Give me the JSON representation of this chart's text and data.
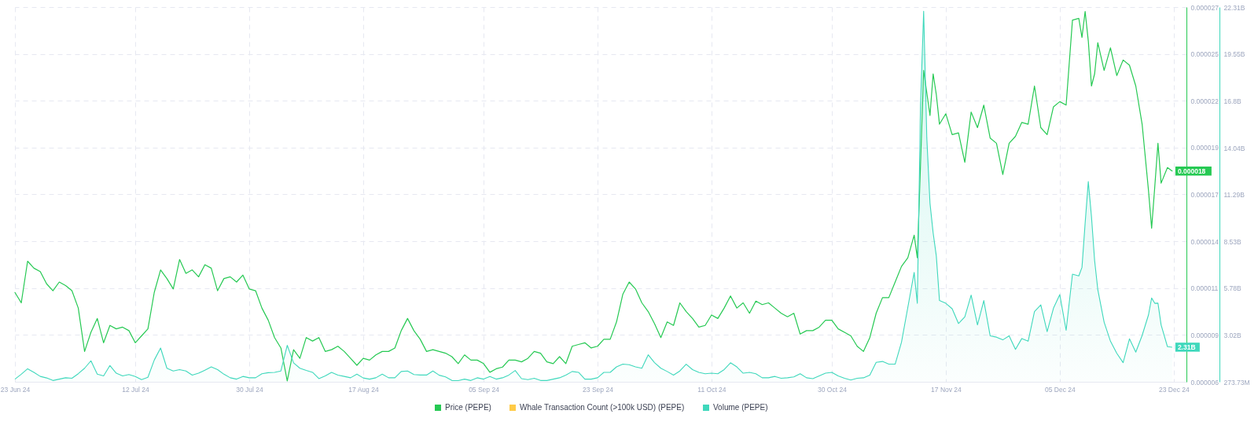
{
  "chart_data": {
    "type": "line",
    "x": [
      "2024-06-23",
      "2024-06-24",
      "2024-06-25",
      "2024-06-26",
      "2024-06-27",
      "2024-06-28",
      "2024-06-29",
      "2024-06-30",
      "2024-07-01",
      "2024-07-02",
      "2024-07-03",
      "2024-07-04",
      "2024-07-05",
      "2024-07-06",
      "2024-07-07",
      "2024-07-08",
      "2024-07-09",
      "2024-07-10",
      "2024-07-11",
      "2024-07-12",
      "2024-07-13",
      "2024-07-14",
      "2024-07-15",
      "2024-07-16",
      "2024-07-17",
      "2024-07-18",
      "2024-07-19",
      "2024-07-20",
      "2024-07-21",
      "2024-07-22",
      "2024-07-23",
      "2024-07-24",
      "2024-07-25",
      "2024-07-26",
      "2024-07-27",
      "2024-07-28",
      "2024-07-29",
      "2024-07-30",
      "2024-07-31",
      "2024-08-01",
      "2024-08-02",
      "2024-08-03",
      "2024-08-04",
      "2024-08-05",
      "2024-08-06",
      "2024-08-07",
      "2024-08-08",
      "2024-08-09",
      "2024-08-10",
      "2024-08-11",
      "2024-08-12",
      "2024-08-13",
      "2024-08-14",
      "2024-08-15",
      "2024-08-16",
      "2024-08-17",
      "2024-08-18",
      "2024-08-19",
      "2024-08-20",
      "2024-08-21",
      "2024-08-22",
      "2024-08-23",
      "2024-08-24",
      "2024-08-25",
      "2024-08-26",
      "2024-08-27",
      "2024-08-28",
      "2024-08-29",
      "2024-08-30",
      "2024-08-31",
      "2024-09-01",
      "2024-09-02",
      "2024-09-03",
      "2024-09-04",
      "2024-09-05",
      "2024-09-06",
      "2024-09-07",
      "2024-09-08",
      "2024-09-09",
      "2024-09-10",
      "2024-09-11",
      "2024-09-12",
      "2024-09-13",
      "2024-09-14",
      "2024-09-15",
      "2024-09-16",
      "2024-09-17",
      "2024-09-18",
      "2024-09-19",
      "2024-09-20",
      "2024-09-21",
      "2024-09-22",
      "2024-09-23",
      "2024-09-24",
      "2024-09-25",
      "2024-09-26",
      "2024-09-27",
      "2024-09-28",
      "2024-09-29",
      "2024-09-30",
      "2024-10-01",
      "2024-10-02",
      "2024-10-03",
      "2024-10-04",
      "2024-10-05",
      "2024-10-06",
      "2024-10-07",
      "2024-10-08",
      "2024-10-09",
      "2024-10-10",
      "2024-10-11",
      "2024-10-12",
      "2024-10-13",
      "2024-10-14",
      "2024-10-15",
      "2024-10-16",
      "2024-10-17",
      "2024-10-18",
      "2024-10-19",
      "2024-10-20",
      "2024-10-21",
      "2024-10-22",
      "2024-10-23",
      "2024-10-24",
      "2024-10-25",
      "2024-10-26",
      "2024-10-27",
      "2024-10-28",
      "2024-10-29",
      "2024-10-30",
      "2024-10-31",
      "2024-11-01",
      "2024-11-02",
      "2024-11-03",
      "2024-11-04",
      "2024-11-05",
      "2024-11-06",
      "2024-11-07",
      "2024-11-08",
      "2024-11-09",
      "2024-11-10",
      "2024-11-11",
      "2024-11-12",
      "2024-11-12T12:00",
      "2024-11-13",
      "2024-11-13T12:00",
      "2024-11-14",
      "2024-11-14T12:00",
      "2024-11-15",
      "2024-11-15T12:00",
      "2024-11-16",
      "2024-11-17",
      "2024-11-18",
      "2024-11-19",
      "2024-11-20",
      "2024-11-21",
      "2024-11-22",
      "2024-11-23",
      "2024-11-24",
      "2024-11-25",
      "2024-11-26",
      "2024-11-27",
      "2024-11-28",
      "2024-11-29",
      "2024-11-30",
      "2024-12-01",
      "2024-12-02",
      "2024-12-03",
      "2024-12-04",
      "2024-12-05",
      "2024-12-06",
      "2024-12-07",
      "2024-12-08",
      "2024-12-08T12:00",
      "2024-12-09",
      "2024-12-09T12:00",
      "2024-12-10",
      "2024-12-10T12:00",
      "2024-12-11",
      "2024-12-12",
      "2024-12-13",
      "2024-12-14",
      "2024-12-15",
      "2024-12-16",
      "2024-12-17",
      "2024-12-18",
      "2024-12-19",
      "2024-12-19T12:00",
      "2024-12-20",
      "2024-12-20T12:00",
      "2024-12-21",
      "2024-12-22",
      "2024-12-22T18:00"
    ],
    "series": [
      {
        "name": "Price (PEPE)",
        "color": "#26c953",
        "axis": "y",
        "values": [
          1.1e-05,
          1.04e-05,
          1.28e-05,
          1.24e-05,
          1.22e-05,
          1.15e-05,
          1.11e-05,
          1.16e-05,
          1.14e-05,
          1.11e-05,
          1.01e-05,
          7.6e-06,
          8.7e-06,
          9.5e-06,
          8.1e-06,
          9.1e-06,
          8.9e-06,
          9e-06,
          8.8e-06,
          8.1e-06,
          8.5e-06,
          8.9e-06,
          1.1e-05,
          1.23e-05,
          1.18e-05,
          1.12e-05,
          1.29e-05,
          1.21e-05,
          1.23e-05,
          1.19e-05,
          1.26e-05,
          1.24e-05,
          1.11e-05,
          1.18e-05,
          1.19e-05,
          1.16e-05,
          1.2e-05,
          1.12e-05,
          1.11e-05,
          1.01e-05,
          9.4e-06,
          8.4e-06,
          7.8e-06,
          5.9e-06,
          7.7e-06,
          7.2e-06,
          8.4e-06,
          8.2e-06,
          8.4e-06,
          7.6e-06,
          7.7e-06,
          7.9e-06,
          7.6e-06,
          7.2e-06,
          6.8e-06,
          7.2e-06,
          7.1e-06,
          7.4e-06,
          7.6e-06,
          7.6e-06,
          7.8e-06,
          8.8e-06,
          9.5e-06,
          8.8e-06,
          8.3e-06,
          7.6e-06,
          7.7e-06,
          7.6e-06,
          7.5e-06,
          7.3e-06,
          6.9e-06,
          7.4e-06,
          7.1e-06,
          7.1e-06,
          6.9e-06,
          6.4e-06,
          6.6e-06,
          6.7e-06,
          7.1e-06,
          7.1e-06,
          7e-06,
          7.2e-06,
          7.6e-06,
          7.5e-06,
          7e-06,
          6.9e-06,
          7.3e-06,
          6.9e-06,
          7.9e-06,
          8e-06,
          8.1e-06,
          7.8e-06,
          7.9e-06,
          8.3e-06,
          8.3e-06,
          9.3e-06,
          1.09e-05,
          1.16e-05,
          1.12e-05,
          1.04e-05,
          9.9e-06,
          9.2e-06,
          8.4e-06,
          9.3e-06,
          9.1e-06,
          1.04e-05,
          9.9e-06,
          9.5e-06,
          9e-06,
          9.1e-06,
          9.7e-06,
          9.5e-06,
          1.01e-05,
          1.08e-05,
          1.01e-05,
          1.04e-05,
          9.8e-06,
          1.05e-05,
          1.03e-05,
          1.04e-05,
          1.01e-05,
          9.8e-06,
          9.6e-06,
          9.8e-06,
          8.6e-06,
          8.8e-06,
          8.8e-06,
          9e-06,
          9.4e-06,
          9.4e-06,
          8.9e-06,
          8.7e-06,
          8.5e-06,
          7.9e-06,
          7.6e-06,
          8.4e-06,
          9.8e-06,
          1.07e-05,
          1.07e-05,
          1.16e-05,
          1.25e-05,
          1.3e-05,
          1.43e-05,
          1.3e-05,
          1.83e-05,
          2.38e-05,
          2.25e-05,
          2.12e-05,
          2.36e-05,
          2.24e-05,
          2.07e-05,
          2.13e-05,
          2.01e-05,
          2.02e-05,
          1.85e-05,
          2.14e-05,
          2.05e-05,
          2.18e-05,
          1.99e-05,
          1.96e-05,
          1.78e-05,
          1.96e-05,
          2e-05,
          2.08e-05,
          2.07e-05,
          2.29e-05,
          2.05e-05,
          2.01e-05,
          2.17e-05,
          2.2e-05,
          2.18e-05,
          2.67e-05,
          2.68e-05,
          2.57e-05,
          2.72e-05,
          2.55e-05,
          2.29e-05,
          2.36e-05,
          2.54e-05,
          2.38e-05,
          2.51e-05,
          2.35e-05,
          2.44e-05,
          2.41e-05,
          2.29e-05,
          2.07e-05,
          1.69e-05,
          1.47e-05,
          1.71e-05,
          1.96e-05,
          1.73e-05,
          1.82e-05,
          1.8e-05
        ],
        "value_labels": [
          null,
          null,
          null,
          null,
          null,
          null,
          null,
          null,
          null,
          null,
          null,
          null,
          null,
          null,
          null,
          null,
          null,
          null,
          null,
          null,
          null,
          null,
          null,
          null,
          null,
          null,
          null,
          null,
          null,
          null,
          null,
          null,
          null,
          null,
          null,
          null,
          null,
          null,
          null,
          null,
          null,
          null,
          null,
          null,
          null,
          null,
          null,
          null,
          null,
          null,
          null,
          null,
          null,
          null,
          null,
          null,
          null,
          null,
          null,
          null,
          null,
          null,
          null,
          null,
          null,
          null,
          null,
          null,
          null,
          null,
          null,
          null,
          null,
          null,
          null,
          null,
          null,
          null,
          null,
          null,
          null,
          null,
          null,
          null,
          null,
          null,
          null,
          null,
          null,
          null,
          null,
          null,
          null,
          null,
          null,
          null,
          null,
          null,
          null,
          null,
          null,
          null,
          null,
          null,
          null,
          null,
          null,
          null,
          null,
          null,
          null,
          null,
          null,
          null,
          null,
          null,
          null,
          null,
          null,
          null,
          null,
          null,
          null,
          null,
          null,
          null,
          null,
          null,
          null,
          null,
          null,
          null,
          null,
          null,
          null,
          null,
          null,
          null,
          null,
          null,
          null,
          null,
          null,
          null,
          null,
          null,
          null,
          null,
          null,
          null,
          null,
          null,
          null,
          null,
          null,
          null,
          null,
          null,
          null,
          null,
          null,
          null,
          null,
          null,
          null,
          null,
          null,
          null,
          null,
          null,
          null,
          null,
          null,
          null,
          null,
          null,
          null,
          null,
          null,
          null,
          null,
          null,
          null,
          null,
          null,
          null,
          null,
          null,
          null,
          null,
          null,
          null,
          "0.000018"
        ]
      },
      {
        "name": "Whale Transaction Count (>100k USD) (PEPE)",
        "color": "#ffcb47",
        "axis": "y",
        "values": [
          null,
          null,
          null,
          null,
          null,
          null,
          null,
          null,
          null,
          null,
          null,
          null,
          null,
          null,
          null,
          null,
          null,
          null,
          null,
          null,
          null,
          null,
          null,
          null,
          null,
          null,
          null,
          null,
          null,
          null,
          null,
          null,
          null,
          null,
          null,
          null,
          null,
          null,
          null,
          null,
          null,
          null,
          null,
          null,
          null,
          null,
          null,
          null,
          null,
          null,
          null,
          null,
          null,
          null,
          null,
          null,
          null,
          null,
          null,
          null,
          null,
          null,
          null,
          null,
          null,
          null,
          null,
          null,
          null,
          null,
          null,
          null,
          null,
          null,
          null,
          null,
          null,
          null,
          null,
          null,
          null,
          null,
          null,
          null,
          null,
          null,
          null,
          null,
          null,
          null,
          null,
          null,
          null,
          null,
          null,
          null,
          null,
          null,
          null,
          null,
          null,
          null,
          null,
          null,
          null,
          null,
          null,
          null,
          null,
          null,
          null,
          null,
          null,
          null,
          null,
          null,
          null,
          null,
          null,
          null,
          null,
          null,
          null,
          null,
          null,
          null,
          null,
          null,
          null,
          null,
          null,
          null,
          null,
          null,
          null,
          null,
          null,
          null,
          null,
          null,
          null,
          null,
          null,
          null,
          null,
          null,
          null,
          null,
          null,
          null,
          null,
          null,
          null,
          null,
          null,
          null,
          null,
          null,
          null,
          null,
          null,
          null,
          null,
          null,
          null,
          null,
          null,
          null,
          null,
          null,
          null,
          null,
          null,
          null,
          null,
          null,
          null,
          null,
          null,
          null,
          null,
          null,
          null,
          null,
          null,
          null,
          null,
          null,
          null,
          null,
          null,
          null,
          null
        ]
      },
      {
        "name": "Volume (PEPE)",
        "color": "#3fd8bc",
        "type": "area",
        "axis": "y2",
        "values": [
          430000000.0,
          720000000.0,
          1040000000.0,
          830000000.0,
          590000000.0,
          500000000.0,
          350000000.0,
          430000000.0,
          510000000.0,
          480000000.0,
          750000000.0,
          1070000000.0,
          1510000000.0,
          720000000.0,
          620000000.0,
          1230000000.0,
          780000000.0,
          620000000.0,
          700000000.0,
          590000000.0,
          400000000.0,
          540000000.0,
          1550000000.0,
          2260000000.0,
          1070000000.0,
          910000000.0,
          990000000.0,
          910000000.0,
          670000000.0,
          780000000.0,
          960000000.0,
          1150000000.0,
          990000000.0,
          720000000.0,
          510000000.0,
          430000000.0,
          590000000.0,
          510000000.0,
          510000000.0,
          750000000.0,
          810000000.0,
          830000000.0,
          910000000.0,
          2420000000.0,
          1390000000.0,
          1070000000.0,
          940000000.0,
          830000000.0,
          460000000.0,
          620000000.0,
          830000000.0,
          670000000.0,
          590000000.0,
          510000000.0,
          720000000.0,
          500000000.0,
          430000000.0,
          510000000.0,
          720000000.0,
          510000000.0,
          510000000.0,
          880000000.0,
          910000000.0,
          700000000.0,
          670000000.0,
          670000000.0,
          910000000.0,
          660000000.0,
          560000000.0,
          350000000.0,
          340000000.0,
          430000000.0,
          350000000.0,
          510000000.0,
          430000000.0,
          590000000.0,
          430000000.0,
          510000000.0,
          670000000.0,
          940000000.0,
          460000000.0,
          400000000.0,
          480000000.0,
          350000000.0,
          350000000.0,
          430000000.0,
          510000000.0,
          670000000.0,
          880000000.0,
          830000000.0,
          430000000.0,
          430000000.0,
          510000000.0,
          830000000.0,
          830000000.0,
          1150000000.0,
          1310000000.0,
          1280000000.0,
          1150000000.0,
          1070000000.0,
          1860000000.0,
          1400000000.0,
          1070000000.0,
          880000000.0,
          670000000.0,
          910000000.0,
          1310000000.0,
          990000000.0,
          830000000.0,
          750000000.0,
          780000000.0,
          750000000.0,
          990000000.0,
          1390000000.0,
          1150000000.0,
          780000000.0,
          830000000.0,
          750000000.0,
          510000000.0,
          510000000.0,
          590000000.0,
          480000000.0,
          510000000.0,
          560000000.0,
          750000000.0,
          510000000.0,
          460000000.0,
          620000000.0,
          780000000.0,
          830000000.0,
          620000000.0,
          480000000.0,
          380000000.0,
          480000000.0,
          510000000.0,
          670000000.0,
          1420000000.0,
          1470000000.0,
          1310000000.0,
          1310000000.0,
          2600000000.0,
          4650000000.0,
          6700000000.0,
          4890000000.0,
          16500000000.0,
          22070000000.0,
          14600000000.0,
          10780000000.0,
          9030000000.0,
          7670000000.0,
          5050000000.0,
          4890000000.0,
          4570000000.0,
          3700000000.0,
          4090000000.0,
          5370000000.0,
          3620000000.0,
          5050000000.0,
          2980000000.0,
          2900000000.0,
          2740000000.0,
          2980000000.0,
          2180000000.0,
          2820000000.0,
          2660000000.0,
          4400000000.0,
          4800000000.0,
          3220000000.0,
          4600000000.0,
          5400000000.0,
          3300000000.0,
          6600000000.0,
          6500000000.0,
          7000000000.0,
          9600000000.0,
          12050000000.0,
          10000000000.0,
          7400000000.0,
          5700000000.0,
          3780000000.0,
          2660000000.0,
          1950000000.0,
          1400000000.0,
          2800000000.0,
          2020000000.0,
          3000000000.0,
          4200000000.0,
          5200000000.0,
          4890000000.0,
          4900000000.0,
          3620000000.0,
          2340000000.0,
          2310000000.0
        ],
        "value_labels": [
          null,
          null,
          null,
          null,
          null,
          null,
          null,
          null,
          null,
          null,
          null,
          null,
          null,
          null,
          null,
          null,
          null,
          null,
          null,
          null,
          null,
          null,
          null,
          null,
          null,
          null,
          null,
          null,
          null,
          null,
          null,
          null,
          null,
          null,
          null,
          null,
          null,
          null,
          null,
          null,
          null,
          null,
          null,
          null,
          null,
          null,
          null,
          null,
          null,
          null,
          null,
          null,
          null,
          null,
          null,
          null,
          null,
          null,
          null,
          null,
          null,
          null,
          null,
          null,
          null,
          null,
          null,
          null,
          null,
          null,
          null,
          null,
          null,
          null,
          null,
          null,
          null,
          null,
          null,
          null,
          null,
          null,
          null,
          null,
          null,
          null,
          null,
          null,
          null,
          null,
          null,
          null,
          null,
          null,
          null,
          null,
          null,
          null,
          null,
          null,
          null,
          null,
          null,
          null,
          null,
          null,
          null,
          null,
          null,
          null,
          null,
          null,
          null,
          null,
          null,
          null,
          null,
          null,
          null,
          null,
          null,
          null,
          null,
          null,
          null,
          null,
          null,
          null,
          null,
          null,
          null,
          null,
          null,
          null,
          null,
          null,
          null,
          null,
          null,
          null,
          null,
          null,
          null,
          null,
          null,
          null,
          null,
          null,
          null,
          null,
          null,
          null,
          null,
          null,
          null,
          null,
          null,
          null,
          null,
          null,
          null,
          null,
          null,
          null,
          null,
          null,
          null,
          null,
          null,
          null,
          null,
          null,
          null,
          null,
          null,
          null,
          null,
          null,
          null,
          null,
          null,
          null,
          null,
          null,
          null,
          null,
          null,
          null,
          null,
          null,
          null,
          null,
          "2.31B"
        ]
      }
    ],
    "xlim": [
      "2024-06-23",
      "2024-12-25"
    ],
    "xticks": [
      {
        "value": "2024-06-23",
        "label": "23 Jun 24"
      },
      {
        "value": "2024-07-12",
        "label": "12 Jul 24"
      },
      {
        "value": "2024-07-30",
        "label": "30 Jul 24"
      },
      {
        "value": "2024-08-17",
        "label": "17 Aug 24"
      },
      {
        "value": "2024-09-05",
        "label": "05 Sep 24"
      },
      {
        "value": "2024-09-23",
        "label": "23 Sep 24"
      },
      {
        "value": "2024-10-11",
        "label": "11 Oct 24"
      },
      {
        "value": "2024-10-30",
        "label": "30 Oct 24"
      },
      {
        "value": "2024-11-17",
        "label": "17 Nov 24"
      },
      {
        "value": "2024-12-05",
        "label": "05 Dec 24"
      },
      {
        "value": "2024-12-23",
        "label": "23 Dec 24"
      }
    ],
    "ylim": [
      5.85e-06,
      2.745e-05
    ],
    "yticks": [
      {
        "value": 5.85e-06,
        "label": "0.000006"
      },
      {
        "value": 8.55e-06,
        "label": "0.000009"
      },
      {
        "value": 1.125e-05,
        "label": "0.000011"
      },
      {
        "value": 1.395e-05,
        "label": "0.000014"
      },
      {
        "value": 1.665e-05,
        "label": "0.000017"
      },
      {
        "value": 1.935e-05,
        "label": "0.000019"
      },
      {
        "value": 2.205e-05,
        "label": "0.000022"
      },
      {
        "value": 2.475e-05,
        "label": "0.000025"
      },
      {
        "value": 2.745e-05,
        "label": "0.000027"
      }
    ],
    "y2lim": [
      273730000,
      22310000000
    ],
    "y2ticks": [
      {
        "value": 273730000,
        "label": "273.73M"
      },
      {
        "value": 3020000000,
        "label": "3.02B"
      },
      {
        "value": 5780000000,
        "label": "5.78B"
      },
      {
        "value": 8530000000,
        "label": "8.53B"
      },
      {
        "value": 11290000000,
        "label": "11.29B"
      },
      {
        "value": 14040000000,
        "label": "14.04B"
      },
      {
        "value": 16800000000,
        "label": "16.8B"
      },
      {
        "value": 19550000000,
        "label": "19.55B"
      },
      {
        "value": 22310000000,
        "label": "22.31B"
      }
    ],
    "grid": true,
    "legend": "bottom"
  }
}
